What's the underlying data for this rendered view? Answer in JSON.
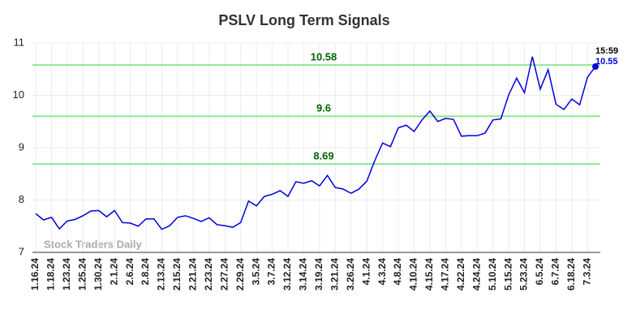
{
  "chart_data": {
    "type": "line",
    "title": "PSLV Long Term Signals",
    "watermark": "Stock Traders Daily",
    "categories": [
      "1.16.24",
      null,
      "1.18.24",
      null,
      "1.23.24",
      null,
      "1.25.24",
      null,
      "1.30.24",
      null,
      "2.1.24",
      null,
      "2.6.24",
      null,
      "2.8.24",
      null,
      "2.13.24",
      null,
      "2.15.24",
      null,
      "2.21.24",
      null,
      "2.23.24",
      null,
      "2.27.24",
      null,
      "2.29.24",
      null,
      "3.5.24",
      null,
      "3.7.24",
      null,
      "3.12.24",
      null,
      "3.14.24",
      null,
      "3.19.24",
      null,
      "3.21.24",
      null,
      "3.26.24",
      null,
      "4.1.24",
      null,
      "4.3.24",
      null,
      "4.8.24",
      null,
      "4.10.24",
      null,
      "4.15.24",
      null,
      "4.17.24",
      null,
      "4.22.24",
      null,
      "4.24.24",
      null,
      "5.10.24",
      null,
      "5.15.24",
      null,
      "5.23.24",
      null,
      "6.5.24",
      null,
      "6.7.24",
      null,
      "6.18.24",
      null,
      "7.3.24",
      null
    ],
    "values": [
      7.74,
      7.62,
      7.67,
      7.45,
      7.6,
      7.63,
      7.7,
      7.79,
      7.8,
      7.68,
      7.8,
      7.57,
      7.56,
      7.5,
      7.64,
      7.64,
      7.44,
      7.51,
      7.67,
      7.7,
      7.65,
      7.59,
      7.66,
      7.53,
      7.51,
      7.48,
      7.57,
      7.98,
      7.89,
      8.07,
      8.11,
      8.18,
      8.07,
      8.35,
      8.32,
      8.37,
      8.27,
      8.47,
      8.24,
      8.21,
      8.13,
      8.21,
      8.36,
      8.75,
      9.09,
      9.02,
      9.38,
      9.43,
      9.31,
      9.53,
      9.7,
      9.5,
      9.56,
      9.54,
      9.22,
      9.23,
      9.23,
      9.28,
      9.53,
      9.55,
      10.01,
      10.33,
      10.05,
      10.74,
      10.12,
      10.49,
      9.83,
      9.73,
      9.93,
      9.82,
      10.35,
      10.55
    ],
    "color": "#0000dd",
    "last_time": "15:59",
    "signal_lines": [
      10.58,
      9.6,
      8.69
    ],
    "signal_color": "#90e890",
    "signal_label_color": "#006400",
    "ylim": [
      7,
      11
    ],
    "yticks": [
      7,
      8,
      9,
      10,
      11
    ],
    "grid": true
  }
}
